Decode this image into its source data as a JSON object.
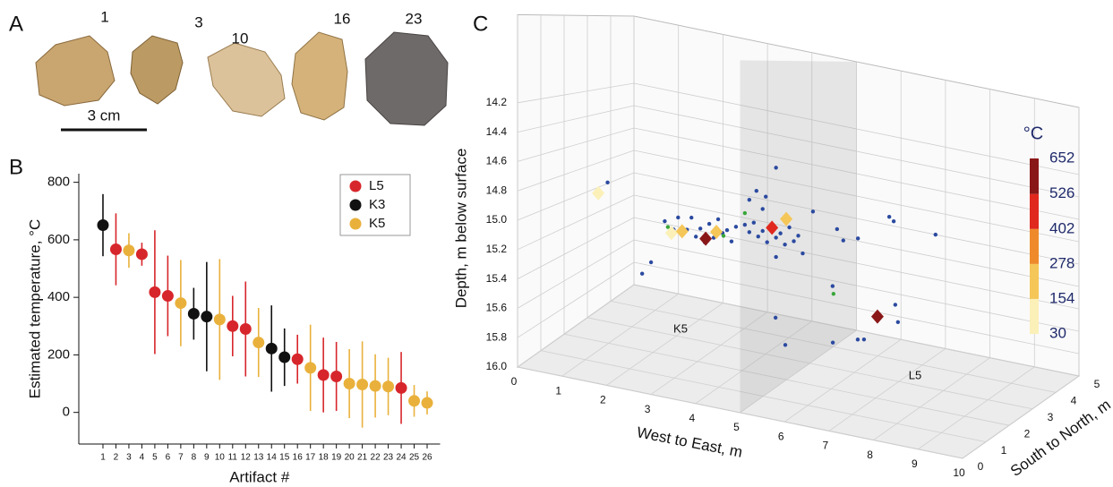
{
  "panel_labels": [
    "A",
    "B",
    "C"
  ],
  "photos": {
    "labels": [
      "1",
      "3",
      "10",
      "16",
      "23"
    ],
    "scale_bar": "3 cm"
  },
  "chart_data": [
    {
      "type": "errorbar",
      "x_label": "Artifact #",
      "y_label": "Estimated temperature, °C",
      "xlim": [
        0,
        27
      ],
      "xticks": [
        1,
        2,
        3,
        4,
        5,
        6,
        7,
        8,
        9,
        10,
        11,
        12,
        13,
        14,
        15,
        16,
        17,
        18,
        19,
        20,
        21,
        22,
        23,
        24,
        25,
        26
      ],
      "ylim": [
        -110,
        830
      ],
      "yticks": [
        0,
        200,
        400,
        600,
        800
      ],
      "legend": "upper right",
      "series": [
        {
          "name": "L5",
          "color": "#d7262b",
          "x": [
            2,
            4,
            5,
            6,
            11,
            12,
            16,
            18,
            19,
            24
          ],
          "values": [
            567,
            550,
            418,
            405,
            300,
            290,
            185,
            130,
            125,
            85
          ],
          "errors": [
            125,
            40,
            215,
            140,
            105,
            165,
            85,
            130,
            120,
            125
          ]
        },
        {
          "name": "K3",
          "color": "#111111",
          "x": [
            1,
            8,
            9,
            14,
            15
          ],
          "values": [
            651,
            343,
            333,
            222,
            192
          ],
          "errors": [
            108,
            90,
            190,
            150,
            100
          ]
        },
        {
          "name": "K5",
          "color": "#e9b13c",
          "x": [
            3,
            7,
            10,
            13,
            17,
            20,
            21,
            22,
            23,
            25,
            26
          ],
          "values": [
            563,
            380,
            323,
            243,
            155,
            100,
            97,
            92,
            90,
            40,
            33
          ],
          "errors": [
            60,
            150,
            210,
            120,
            150,
            120,
            150,
            110,
            100,
            55,
            40
          ]
        }
      ]
    },
    {
      "type": "scatter3d",
      "x_label": "West to East, m",
      "y_label": "South to North, m",
      "z_label": "Depth, m below surface",
      "xlim": [
        0,
        10
      ],
      "xticks": [
        0,
        1,
        2,
        3,
        4,
        5,
        6,
        7,
        8,
        9,
        10
      ],
      "ylim": [
        0,
        5
      ],
      "yticks": [
        0,
        1,
        2,
        3,
        4,
        5
      ],
      "zlim": [
        13.6,
        16
      ],
      "zticks": [
        14.2,
        14.4,
        14.6,
        14.8,
        {
          "value": 15,
          "label": "15.0"
        },
        15.2,
        15.4,
        15.6,
        15.8,
        {
          "value": 16,
          "label": "16.0"
        }
      ],
      "zone_labels": [
        "K5",
        "L5"
      ],
      "boundary_x": 5,
      "colorbar": {
        "title": "°C",
        "ticks": [
          30,
          154,
          278,
          402,
          526,
          652
        ],
        "colors": [
          "#fbf0b8",
          "#f5c658",
          "#ef8a2a",
          "#e0281e",
          "#8a1718"
        ]
      },
      "series": [
        {
          "marker": "circle",
          "color": "#2b4aa0",
          "x": [
            2.0,
            2.2,
            2.3,
            2.5,
            2.6,
            2.7,
            2.8,
            2.9,
            3.0,
            3.1,
            3.2,
            3.3,
            3.4,
            3.5,
            3.6,
            3.8,
            3.9,
            4.0,
            4.1,
            4.2,
            4.3,
            4.4,
            4.5,
            4.6,
            4.7,
            4.8,
            4.9,
            5.0,
            5.1,
            4.2,
            3.9,
            4.5,
            1.5,
            2.8,
            3.0,
            4.5,
            4.06,
            4.27,
            5.33,
            6.26,
            6.36,
            7.3,
            5.61,
            5.75,
            6.08,
            5.51,
            7.18,
            7.24,
            4.49,
            4.97,
            6.3,
            6.86,
            7.0
          ],
          "y": [
            2.5,
            2.5,
            2.5,
            2.5,
            2.5,
            2.5,
            2.5,
            2.5,
            2.5,
            2.5,
            2.5,
            2.5,
            2.5,
            2.5,
            2.5,
            2.5,
            2.5,
            2.5,
            2.5,
            2.5,
            2.5,
            2.5,
            2.5,
            2.5,
            2.5,
            2.5,
            2.5,
            2.5,
            2.5,
            2.5,
            2.5,
            2.5,
            1,
            0,
            0,
            2.5,
            2.5,
            2.5,
            2.5,
            4,
            4,
            4,
            3,
            3,
            3,
            3,
            2.5,
            2.5,
            2.5,
            2,
            1.5,
            1.5,
            1.5
          ],
          "z": [
            15.05,
            15.1,
            15.0,
            15.08,
            14.98,
            15.12,
            15.05,
            15.15,
            15.0,
            15.1,
            14.95,
            15.05,
            15.02,
            15.1,
            14.98,
            14.95,
            15.0,
            14.92,
            15.02,
            14.97,
            15.05,
            14.93,
            15.0,
            14.96,
            15.04,
            14.9,
            15.0,
            14.95,
            15.08,
            14.8,
            14.75,
            15.15,
            14.7,
            15.19,
            15.1,
            14.46,
            14.67,
            14.7,
            14.74,
            14.81,
            14.84,
            14.88,
            14.89,
            14.97,
            14.93,
            15.35,
            15.33,
            15.46,
            15.62,
            15.74,
            15.58,
            15.52,
            15.51
          ]
        },
        {
          "marker": "circle",
          "color": "#3aa63a",
          "x": [
            2.07,
            3.32,
            3.8,
            5.53
          ],
          "y": [
            2.5,
            2.5,
            2.5,
            3
          ],
          "z": [
            15.09,
            15.07,
            14.86,
            15.41
          ]
        },
        {
          "marker": "diamond",
          "x": [
            1.29,
            2.15,
            2.39,
            3.16,
            2.92,
            4.41,
            4.73,
            6.78
          ],
          "y": [
            1,
            2.5,
            2.5,
            2.5,
            2.5,
            2.5,
            2.5,
            2.5
          ],
          "z": [
            14.79,
            15.13,
            15.1,
            15.05,
            15.12,
            14.93,
            14.84,
            15.45
          ],
          "temperatures": [
            90,
            100,
            160,
            240,
            567,
            418,
            190,
            651
          ]
        }
      ]
    }
  ]
}
